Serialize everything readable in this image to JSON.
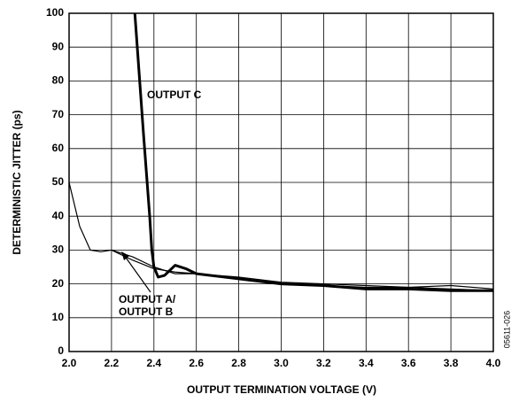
{
  "chart_data": {
    "type": "line",
    "xlabel": "OUTPUT TERMINATION VOLTAGE (V)",
    "ylabel": "DETERMINISTIC JITTER (ps)",
    "annotations": [
      "OUTPUT C",
      "OUTPUT A/",
      "OUTPUT B",
      "05611-026"
    ],
    "xlim": [
      2.0,
      4.0
    ],
    "xticks": [
      {
        "value": 2,
        "label": "2.0"
      },
      2.2,
      2.4,
      2.6,
      2.8,
      {
        "value": 3,
        "label": "3.0"
      },
      3.2,
      3.4,
      3.6,
      3.8,
      {
        "value": 4,
        "label": "4.0"
      }
    ],
    "ylim": [
      0,
      100
    ],
    "yticks": [
      0,
      10,
      20,
      30,
      40,
      50,
      60,
      70,
      80,
      90,
      100
    ],
    "grid": true,
    "series": [
      {
        "color": "#000000",
        "width": 1.2,
        "x": [
          2.0,
          2.05,
          2.1,
          2.15,
          2.2,
          2.3,
          2.4,
          2.5,
          2.6,
          2.8,
          3.0,
          3.2,
          3.4,
          3.6,
          3.8,
          4.0
        ],
        "values": [
          50,
          37,
          30,
          29.5,
          30,
          28,
          25,
          23,
          23,
          22,
          20.5,
          20,
          19.5,
          19,
          18.5,
          18
        ]
      },
      {
        "color": "#000000",
        "width": 1.2,
        "x": [
          2.2,
          2.3,
          2.4,
          2.5,
          2.6,
          2.8,
          3.0,
          3.2,
          3.4,
          3.6,
          3.8,
          4.0
        ],
        "values": [
          30,
          27,
          24.5,
          23.5,
          23,
          21.5,
          20,
          19.5,
          19,
          19,
          19.5,
          18.5
        ]
      },
      {
        "color": "#000000",
        "width": 3,
        "x": [
          2.31,
          2.35,
          2.38,
          2.39,
          2.4,
          2.42,
          2.45,
          2.5,
          2.55,
          2.6,
          2.8,
          3.0,
          3.2,
          3.4,
          3.6,
          3.8,
          4.0
        ],
        "values": [
          100,
          65,
          40,
          30,
          25,
          22,
          22.5,
          25.5,
          24.5,
          23,
          21.5,
          20,
          19.5,
          18.5,
          18.5,
          18,
          18
        ]
      }
    ]
  }
}
